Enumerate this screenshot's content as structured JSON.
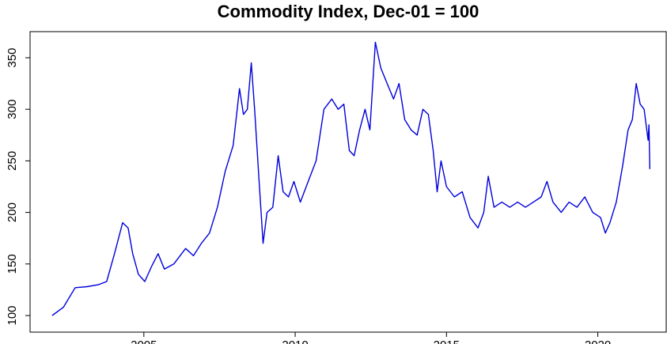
{
  "chart_data": {
    "type": "line",
    "title": "Commodity Index, Dec-01 = 100",
    "x": [
      2001.97,
      2002.34,
      2002.73,
      2003.12,
      2003.51,
      2003.77,
      2004.03,
      2004.3,
      2004.48,
      2004.63,
      2004.82,
      2005.03,
      2005.26,
      2005.47,
      2005.68,
      2005.99,
      2006.38,
      2006.64,
      2006.9,
      2007.17,
      2007.43,
      2007.69,
      2007.95,
      2008.16,
      2008.29,
      2008.42,
      2008.55,
      2008.66,
      2008.81,
      2008.94,
      2009.07,
      2009.26,
      2009.44,
      2009.6,
      2009.78,
      2009.96,
      2010.17,
      2010.43,
      2010.69,
      2010.95,
      2011.21,
      2011.42,
      2011.61,
      2011.79,
      2011.95,
      2012.13,
      2012.31,
      2012.47,
      2012.65,
      2012.83,
      2013.04,
      2013.25,
      2013.43,
      2013.62,
      2013.83,
      2014.03,
      2014.22,
      2014.4,
      2014.56,
      2014.69,
      2014.82,
      2015.0,
      2015.26,
      2015.52,
      2015.78,
      2016.04,
      2016.23,
      2016.38,
      2016.57,
      2016.83,
      2017.09,
      2017.35,
      2017.61,
      2017.87,
      2018.13,
      2018.32,
      2018.52,
      2018.79,
      2019.05,
      2019.31,
      2019.57,
      2019.83,
      2020.09,
      2020.25,
      2020.4,
      2020.61,
      2020.82,
      2021.0,
      2021.14,
      2021.27,
      2021.4,
      2021.53,
      2021.66,
      2021.69,
      2021.72
    ],
    "series": [
      {
        "color": "#0000dd",
        "values": [
          100,
          108,
          127,
          128,
          130,
          133,
          160,
          190,
          185,
          160,
          140,
          133,
          148,
          160,
          145,
          150,
          165,
          158,
          170,
          180,
          205,
          240,
          265,
          320,
          295,
          300,
          345,
          300,
          230,
          170,
          200,
          205,
          255,
          220,
          215,
          230,
          210,
          230,
          250,
          300,
          310,
          300,
          305,
          260,
          255,
          280,
          300,
          280,
          365,
          340,
          325,
          310,
          325,
          290,
          280,
          275,
          300,
          295,
          260,
          220,
          250,
          225,
          215,
          220,
          195,
          185,
          200,
          235,
          205,
          210,
          205,
          210,
          205,
          210,
          215,
          230,
          210,
          200,
          210,
          205,
          215,
          200,
          195,
          180,
          190,
          210,
          245,
          280,
          290,
          325,
          305,
          300,
          270,
          285,
          242
        ]
      }
    ],
    "xlim": [
      2001.24,
      2022.26
    ],
    "ylim": [
      83.9,
      375.3
    ],
    "xticks": [
      2005,
      2010,
      2015,
      2020
    ],
    "yticks": [
      100,
      150,
      200,
      250,
      300,
      350
    ]
  }
}
